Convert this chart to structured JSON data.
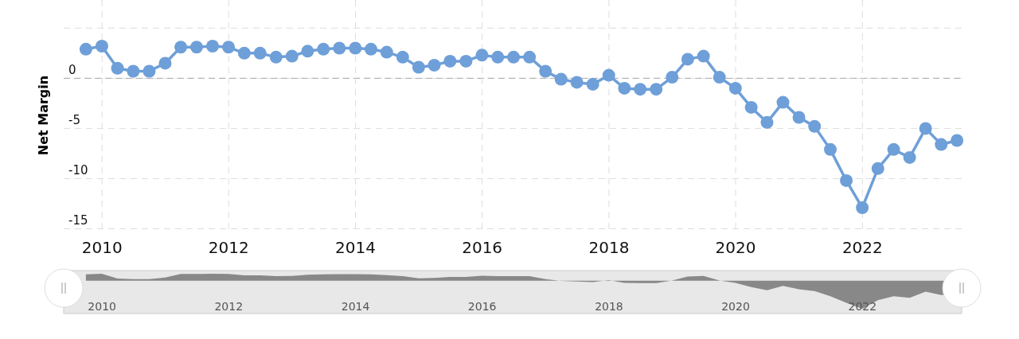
{
  "chart_data": {
    "type": "line",
    "ylabel": "Net Margin",
    "x": [
      "2009-09-30",
      "2009-12-31",
      "2010-03-31",
      "2010-06-30",
      "2010-09-30",
      "2010-12-31",
      "2011-03-31",
      "2011-06-30",
      "2011-09-30",
      "2011-12-31",
      "2012-03-31",
      "2012-06-30",
      "2012-09-30",
      "2012-12-31",
      "2013-03-31",
      "2013-06-30",
      "2013-09-30",
      "2013-12-31",
      "2014-03-31",
      "2014-06-30",
      "2014-09-30",
      "2014-12-31",
      "2015-03-31",
      "2015-06-30",
      "2015-09-30",
      "2015-12-31",
      "2016-03-31",
      "2016-06-30",
      "2016-09-30",
      "2016-12-31",
      "2017-03-31",
      "2017-06-30",
      "2017-09-30",
      "2017-12-31",
      "2018-03-31",
      "2018-06-30",
      "2018-09-30",
      "2018-12-31",
      "2019-03-31",
      "2019-06-30",
      "2019-09-30",
      "2019-12-31",
      "2020-03-31",
      "2020-06-30",
      "2020-09-30",
      "2020-12-31",
      "2021-03-31",
      "2021-06-30",
      "2021-09-30",
      "2021-12-31",
      "2022-03-31",
      "2022-06-30",
      "2022-09-30",
      "2022-12-31",
      "2023-03-31",
      "2023-06-30"
    ],
    "series": [
      {
        "color": "#6e9fd8",
        "values": [
          2.9,
          3.2,
          1.0,
          0.7,
          0.7,
          1.5,
          3.1,
          3.1,
          3.2,
          3.1,
          2.5,
          2.5,
          2.1,
          2.2,
          2.7,
          2.9,
          3.0,
          3.0,
          2.9,
          2.6,
          2.1,
          1.1,
          1.3,
          1.7,
          1.7,
          2.3,
          2.1,
          2.1,
          2.1,
          0.7,
          -0.1,
          -0.4,
          -0.6,
          0.3,
          -1.0,
          -1.1,
          -1.1,
          0.1,
          1.9,
          2.2,
          0.1,
          -1.0,
          -2.9,
          -4.4,
          -2.4,
          -3.9,
          -4.8,
          -7.1,
          -10.2,
          -12.9,
          -9.0,
          -7.1,
          -7.9,
          -5.0,
          -6.6,
          -6.2
        ]
      }
    ],
    "xlim": [
      "2009-05-25",
      "2023-07-27"
    ],
    "xticks": [
      {
        "value": "2010-01-01",
        "label": "2010"
      },
      {
        "value": "2012-01-01",
        "label": "2012"
      },
      {
        "value": "2014-01-01",
        "label": "2014"
      },
      {
        "value": "2016-01-01",
        "label": "2016"
      },
      {
        "value": "2018-01-01",
        "label": "2018"
      },
      {
        "value": "2020-01-01",
        "label": "2020"
      },
      {
        "value": "2022-01-01",
        "label": "2022"
      }
    ],
    "ylim": [
      -15.2,
      7.8
    ],
    "yticks": [
      -15,
      -10,
      -5,
      0,
      {
        "value": 5,
        "label": null
      }
    ],
    "ref_lines": [
      {
        "axis": "y",
        "value": 0,
        "color": "#aaaaaa",
        "line_style": "dashed"
      }
    ],
    "grid": true,
    "marker": "circle",
    "line_style": "solid"
  }
}
